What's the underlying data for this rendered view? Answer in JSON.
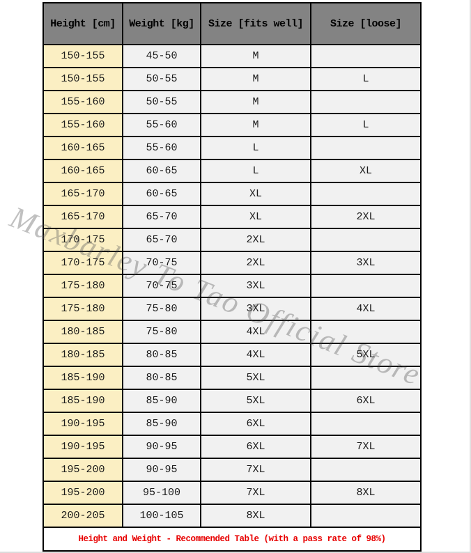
{
  "table": {
    "headers": [
      "Height [cm]",
      "Weight [kg]",
      "Size [fits well]",
      "Size [loose]"
    ],
    "rows": [
      [
        "150-155",
        "45-50",
        "M",
        ""
      ],
      [
        "150-155",
        "50-55",
        "M",
        "L"
      ],
      [
        "155-160",
        "50-55",
        "M",
        ""
      ],
      [
        "155-160",
        "55-60",
        "M",
        "L"
      ],
      [
        "160-165",
        "55-60",
        "L",
        ""
      ],
      [
        "160-165",
        "60-65",
        "L",
        "XL"
      ],
      [
        "165-170",
        "60-65",
        "XL",
        ""
      ],
      [
        "165-170",
        "65-70",
        "XL",
        "2XL"
      ],
      [
        "170-175",
        "65-70",
        "2XL",
        ""
      ],
      [
        "170-175",
        "70-75",
        "2XL",
        "3XL"
      ],
      [
        "175-180",
        "70-75",
        "3XL",
        ""
      ],
      [
        "175-180",
        "75-80",
        "3XL",
        "4XL"
      ],
      [
        "180-185",
        "75-80",
        "4XL",
        ""
      ],
      [
        "180-185",
        "80-85",
        "4XL",
        "5XL"
      ],
      [
        "185-190",
        "80-85",
        "5XL",
        ""
      ],
      [
        "185-190",
        "85-90",
        "5XL",
        "6XL"
      ],
      [
        "190-195",
        "85-90",
        "6XL",
        ""
      ],
      [
        "190-195",
        "90-95",
        "6XL",
        "7XL"
      ],
      [
        "195-200",
        "90-95",
        "7XL",
        ""
      ],
      [
        "195-200",
        "95-100",
        "7XL",
        "8XL"
      ],
      [
        "200-205",
        "100-105",
        "8XL",
        ""
      ]
    ],
    "footer": "Height and Weight - Recommended Table (with a pass rate of 98%)"
  },
  "watermark": "Maxbarley To Tao Official Store",
  "colors": {
    "header_bg": "#838383",
    "height_column_bg": "#fbefc3",
    "cell_bg": "#f1f1f1",
    "border": "#000000",
    "footer_text": "#e80000",
    "watermark_text": "#5a5a5a"
  }
}
